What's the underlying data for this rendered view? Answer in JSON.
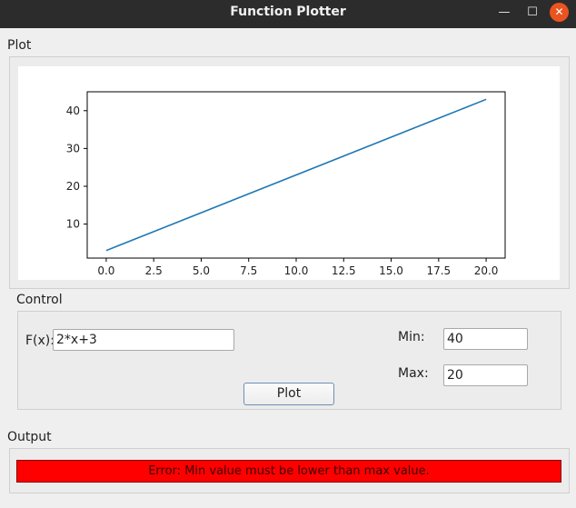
{
  "window": {
    "title": "Function Plotter",
    "controls": {
      "minimize": "—",
      "maximize": "☐",
      "close": "✕"
    }
  },
  "plot_group": {
    "label": "Plot"
  },
  "chart_data": {
    "type": "line",
    "title": "",
    "xlabel": "",
    "ylabel": "",
    "xlim": [
      -1,
      21
    ],
    "ylim": [
      1,
      45
    ],
    "x_ticks": [
      0,
      2.5,
      5,
      7.5,
      10,
      12.5,
      15,
      17.5,
      20
    ],
    "x_tick_labels": [
      "0.0",
      "2.5",
      "5.0",
      "7.5",
      "10.0",
      "12.5",
      "15.0",
      "17.5",
      "20.0"
    ],
    "y_ticks": [
      10,
      20,
      30,
      40
    ],
    "y_tick_labels": [
      "10",
      "20",
      "30",
      "40"
    ],
    "grid": false,
    "series": [
      {
        "x": [
          0,
          20
        ],
        "y": [
          3,
          43
        ],
        "color": "#1f77b4"
      }
    ]
  },
  "control_group": {
    "label": "Control",
    "function_label": "F(x):",
    "function_value": "2*x+3",
    "min_label": "Min:",
    "min_value": "40",
    "max_label": "Max:",
    "max_value": "20",
    "plot_button": "Plot"
  },
  "output_group": {
    "label": "Output",
    "message": "Error: Min value must be lower than max value.",
    "color": "#ff0000"
  }
}
